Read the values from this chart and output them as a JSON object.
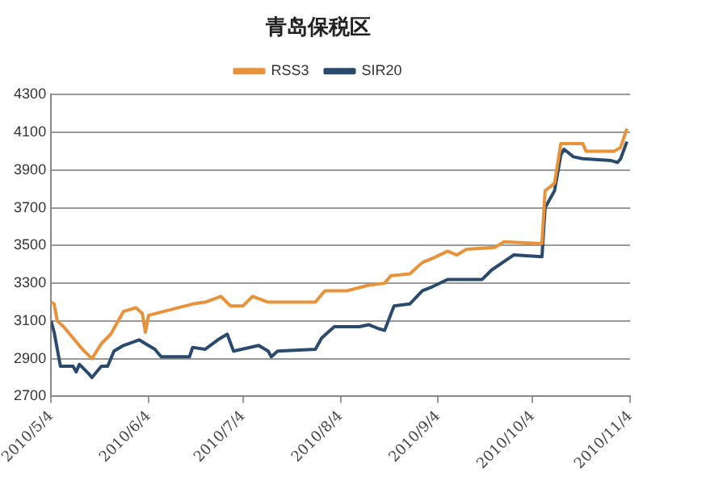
{
  "chart_data": {
    "type": "line",
    "title": "青岛保税区",
    "xlim": [
      "2010-05-04",
      "2010-11-04"
    ],
    "xticks": [
      {
        "value": "2010-05-04",
        "label": "2010/5/4"
      },
      {
        "value": "2010-06-04",
        "label": "2010/6/4"
      },
      {
        "value": "2010-07-04",
        "label": "2010/7/4"
      },
      {
        "value": "2010-08-04",
        "label": "2010/8/4"
      },
      {
        "value": "2010-09-04",
        "label": "2010/9/4"
      },
      {
        "value": "2010-10-04",
        "label": "2010/10/4"
      },
      {
        "value": "2010-11-04",
        "label": "2010/11/4"
      }
    ],
    "ylim": [
      2700,
      4300
    ],
    "yticks": [
      2700,
      2900,
      3100,
      3300,
      3500,
      3700,
      3900,
      4100,
      4300
    ],
    "grid": "y",
    "legend": "top",
    "marker": "none",
    "series": [
      {
        "name": "RSS3",
        "color": "#e8923a",
        "x": [
          "2010-05-04",
          "2010-05-05",
          "2010-05-06",
          "2010-05-08",
          "2010-05-11",
          "2010-05-14",
          "2010-05-17",
          "2010-05-20",
          "2010-05-23",
          "2010-05-27",
          "2010-05-31",
          "2010-06-02",
          "2010-06-03",
          "2010-06-04",
          "2010-06-11",
          "2010-06-18",
          "2010-06-22",
          "2010-06-27",
          "2010-06-30",
          "2010-07-04",
          "2010-07-07",
          "2010-07-12",
          "2010-07-27",
          "2010-07-30",
          "2010-08-06",
          "2010-08-13",
          "2010-08-18",
          "2010-08-20",
          "2010-08-26",
          "2010-08-30",
          "2010-09-02",
          "2010-09-07",
          "2010-09-10",
          "2010-09-13",
          "2010-09-22",
          "2010-09-25",
          "2010-10-07",
          "2010-10-08",
          "2010-10-11",
          "2010-10-13",
          "2010-10-20",
          "2010-10-21",
          "2010-10-30",
          "2010-11-01",
          "2010-11-03"
        ],
        "values": [
          3200,
          3190,
          3100,
          3070,
          3010,
          2950,
          2900,
          2980,
          3030,
          3150,
          3170,
          3140,
          3040,
          3130,
          3160,
          3190,
          3200,
          3230,
          3180,
          3180,
          3230,
          3200,
          3200,
          3260,
          3260,
          3290,
          3300,
          3340,
          3350,
          3410,
          3430,
          3470,
          3450,
          3480,
          3490,
          3520,
          3510,
          3790,
          3830,
          4040,
          4040,
          4000,
          4000,
          4020,
          4120
        ]
      },
      {
        "name": "SIR20",
        "color": "#2a4a6e",
        "x": [
          "2010-05-04",
          "2010-05-05",
          "2010-05-07",
          "2010-05-11",
          "2010-05-12",
          "2010-05-13",
          "2010-05-16",
          "2010-05-17",
          "2010-05-20",
          "2010-05-22",
          "2010-05-24",
          "2010-05-27",
          "2010-06-01",
          "2010-06-03",
          "2010-06-06",
          "2010-06-08",
          "2010-06-17",
          "2010-06-18",
          "2010-06-22",
          "2010-06-26",
          "2010-06-29",
          "2010-07-01",
          "2010-07-09",
          "2010-07-12",
          "2010-07-13",
          "2010-07-15",
          "2010-07-27",
          "2010-07-29",
          "2010-08-02",
          "2010-08-10",
          "2010-08-13",
          "2010-08-16",
          "2010-08-18",
          "2010-08-21",
          "2010-08-26",
          "2010-08-30",
          "2010-09-02",
          "2010-09-07",
          "2010-09-18",
          "2010-09-21",
          "2010-09-28",
          "2010-10-07",
          "2010-10-08",
          "2010-10-11",
          "2010-10-13",
          "2010-10-14",
          "2010-10-17",
          "2010-10-20",
          "2010-10-29",
          "2010-10-31",
          "2010-11-01",
          "2010-11-03"
        ],
        "values": [
          3100,
          3040,
          2860,
          2860,
          2830,
          2870,
          2820,
          2800,
          2860,
          2860,
          2940,
          2970,
          3000,
          2980,
          2950,
          2910,
          2910,
          2960,
          2950,
          3000,
          3030,
          2940,
          2970,
          2940,
          2910,
          2940,
          2950,
          3010,
          3070,
          3070,
          3080,
          3060,
          3050,
          3180,
          3190,
          3260,
          3280,
          3320,
          3320,
          3370,
          3450,
          3440,
          3700,
          3790,
          3980,
          4010,
          3970,
          3960,
          3950,
          3940,
          3960,
          4050
        ]
      }
    ]
  }
}
